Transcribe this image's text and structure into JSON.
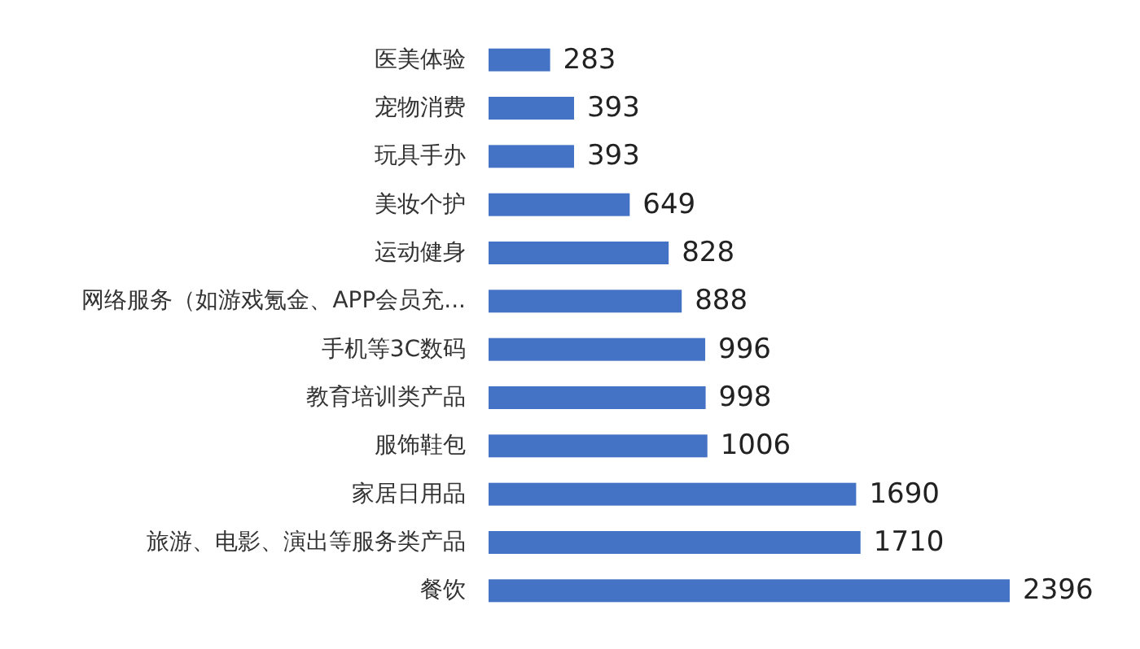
{
  "chart_data": {
    "type": "bar",
    "orientation": "horizontal",
    "categories": [
      "医美体验",
      "宠物消费",
      "玩具手办",
      "美妆个护",
      "运动健身",
      "网络服务（如游戏氪金、APP会员充...",
      "手机等3C数码",
      "教育培训类产品",
      "服饰鞋包",
      "家居日用品",
      "旅游、电影、演出等服务类产品",
      "餐饮"
    ],
    "values": [
      283,
      393,
      393,
      649,
      828,
      888,
      996,
      998,
      1006,
      1690,
      1710,
      2396
    ],
    "color": "#4472c4",
    "data_labels": true
  }
}
